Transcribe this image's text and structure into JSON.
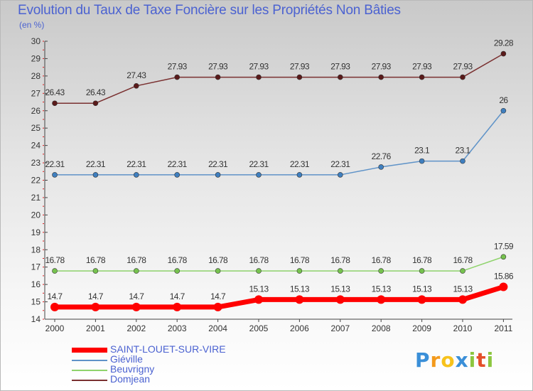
{
  "chart_data": {
    "type": "line",
    "title": "Evolution du Taux de Taxe Foncière sur les Propriétés Non Bâties",
    "ylabel": "(en %)",
    "xlabel": "",
    "ylim": [
      14,
      30
    ],
    "yticks": [
      "14",
      "15",
      "16",
      "17",
      "18",
      "19",
      "20",
      "21",
      "22",
      "23",
      "24",
      "25",
      "26",
      "27",
      "28",
      "29",
      "30"
    ],
    "categories": [
      "2000",
      "2001",
      "2002",
      "2003",
      "2004",
      "2005",
      "2006",
      "2007",
      "2008",
      "2009",
      "2010",
      "2011"
    ],
    "series": [
      {
        "name": "Domjean",
        "color": "#7a3030",
        "marker": "#5a1a1a",
        "width": 1.5,
        "values": [
          26.43,
          26.43,
          27.43,
          27.93,
          27.93,
          27.93,
          27.93,
          27.93,
          27.93,
          27.93,
          27.93,
          29.28
        ],
        "labels": [
          "26.43",
          "26.43",
          "27.43",
          "27.93",
          "27.93",
          "27.93",
          "27.93",
          "27.93",
          "27.93",
          "27.93",
          "27.93",
          "29.28"
        ]
      },
      {
        "name": "Giéville",
        "color": "#5f93c8",
        "marker": "#3f7fbf",
        "width": 1.5,
        "values": [
          22.31,
          22.31,
          22.31,
          22.31,
          22.31,
          22.31,
          22.31,
          22.31,
          22.76,
          23.1,
          23.1,
          26
        ],
        "labels": [
          "22.31",
          "22.31",
          "22.31",
          "22.31",
          "22.31",
          "22.31",
          "22.31",
          "22.31",
          "22.76",
          "23.1",
          "23.1",
          "26"
        ]
      },
      {
        "name": "Beuvrigny",
        "color": "#8fd36c",
        "marker": "#76c24e",
        "width": 1.5,
        "values": [
          16.78,
          16.78,
          16.78,
          16.78,
          16.78,
          16.78,
          16.78,
          16.78,
          16.78,
          16.78,
          16.78,
          17.59
        ],
        "labels": [
          "16.78",
          "16.78",
          "16.78",
          "16.78",
          "16.78",
          "16.78",
          "16.78",
          "16.78",
          "16.78",
          "16.78",
          "16.78",
          "17.59"
        ]
      },
      {
        "name": "SAINT-LOUET-SUR-VIRE",
        "color": "#ff0000",
        "marker": "#ff0000",
        "width": 7,
        "values": [
          14.7,
          14.7,
          14.7,
          14.7,
          14.7,
          15.13,
          15.13,
          15.13,
          15.13,
          15.13,
          15.13,
          15.86
        ],
        "labels": [
          "14.7",
          "14.7",
          "14.7",
          "14.7",
          "14.7",
          "15.13",
          "15.13",
          "15.13",
          "15.13",
          "15.13",
          "15.13",
          "15.86"
        ]
      }
    ],
    "legend": [
      {
        "name": "SAINT-LOUET-SUR-VIRE",
        "color": "#ff0000"
      },
      {
        "name": "Giéville",
        "color": "#5f93c8"
      },
      {
        "name": "Beuvrigny",
        "color": "#8fd36c"
      },
      {
        "name": "Domjean",
        "color": "#7a3030"
      }
    ],
    "legend_position": "bottom-left",
    "grid": false
  },
  "logo": {
    "letters": [
      "P",
      "r",
      "o",
      "x",
      "i",
      "t",
      "i"
    ],
    "colors": [
      "#3a8fd8",
      "#f39a1c",
      "#f7c21b",
      "#3a8fd8",
      "#8cc63f",
      "#e44f2a",
      "#8cc63f"
    ]
  }
}
